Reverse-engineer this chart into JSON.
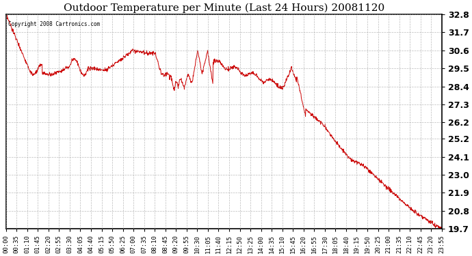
{
  "title": "Outdoor Temperature per Minute (Last 24 Hours) 20081120",
  "copyright_text": "Copyright 2008 Cartronics.com",
  "line_color": "#cc0000",
  "background_color": "#ffffff",
  "grid_color": "#aaaaaa",
  "ylim": [
    19.7,
    32.8
  ],
  "yticks": [
    19.7,
    20.8,
    21.9,
    23.0,
    24.1,
    25.2,
    26.2,
    27.3,
    28.4,
    29.5,
    30.6,
    31.7,
    32.8
  ],
  "title_fontsize": 11,
  "tick_fontsize": 6.5,
  "ytick_fontsize": 9,
  "xtick_labels": [
    "00:00",
    "00:35",
    "01:10",
    "01:45",
    "02:20",
    "02:55",
    "03:30",
    "04:05",
    "04:40",
    "05:15",
    "05:50",
    "06:25",
    "07:00",
    "07:35",
    "08:10",
    "08:45",
    "09:20",
    "09:55",
    "10:30",
    "11:05",
    "11:40",
    "12:15",
    "12:50",
    "13:25",
    "14:00",
    "14:35",
    "15:10",
    "15:45",
    "16:20",
    "16:55",
    "17:30",
    "18:05",
    "18:40",
    "19:15",
    "19:50",
    "20:25",
    "21:00",
    "21:35",
    "22:10",
    "22:45",
    "23:20",
    "23:55"
  ],
  "figsize": [
    6.9,
    3.75
  ],
  "dpi": 100
}
